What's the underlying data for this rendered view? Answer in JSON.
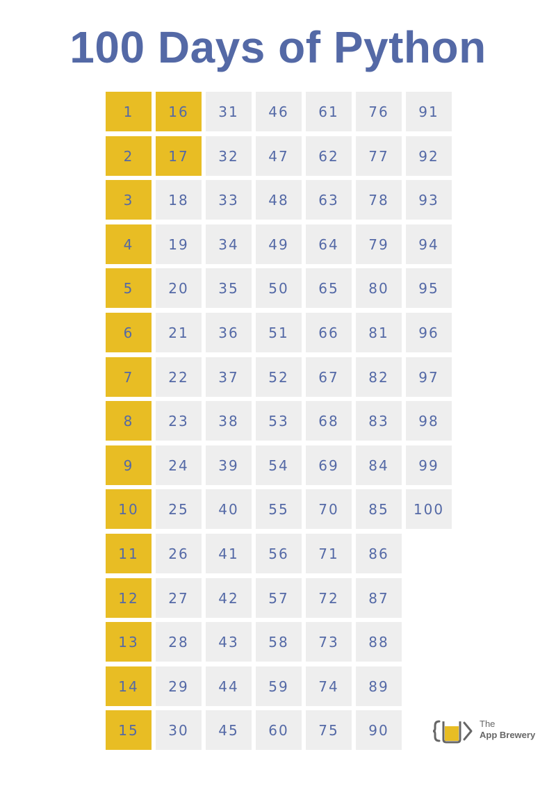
{
  "title": "100 Days of Python",
  "colors": {
    "title": "#5469a6",
    "number_text": "#5469a6",
    "completed_bg": "#e8bd24",
    "pending_bg": "#eeeeee",
    "logo_grey": "#666666",
    "logo_yellow": "#e8bd24"
  },
  "completed_days": [
    1,
    2,
    3,
    4,
    5,
    6,
    7,
    8,
    9,
    10,
    11,
    12,
    13,
    14,
    15,
    16,
    17
  ],
  "columns": [
    [
      "1",
      "2",
      "3",
      "4",
      "5",
      "6",
      "7",
      "8",
      "9",
      "10",
      "11",
      "12",
      "13",
      "14",
      "15"
    ],
    [
      "16",
      "17",
      "18",
      "19",
      "20",
      "21",
      "22",
      "23",
      "24",
      "25",
      "26",
      "27",
      "28",
      "29",
      "30"
    ],
    [
      "31",
      "32",
      "33",
      "34",
      "35",
      "36",
      "37",
      "38",
      "39",
      "40",
      "41",
      "42",
      "43",
      "44",
      "45"
    ],
    [
      "46",
      "47",
      "48",
      "49",
      "50",
      "51",
      "52",
      "53",
      "54",
      "55",
      "56",
      "57",
      "58",
      "59",
      "60"
    ],
    [
      "61",
      "62",
      "63",
      "64",
      "65",
      "66",
      "67",
      "68",
      "69",
      "70",
      "71",
      "72",
      "73",
      "74",
      "75"
    ],
    [
      "76",
      "77",
      "78",
      "79",
      "80",
      "81",
      "82",
      "83",
      "84",
      "85",
      "86",
      "87",
      "88",
      "89",
      "90"
    ],
    [
      "91",
      "92",
      "93",
      "94",
      "95",
      "96",
      "97",
      "98",
      "99",
      "100"
    ]
  ],
  "logo": {
    "icon": "brewery-glass-code-icon",
    "line1": "The",
    "line2": "App Brewery"
  }
}
